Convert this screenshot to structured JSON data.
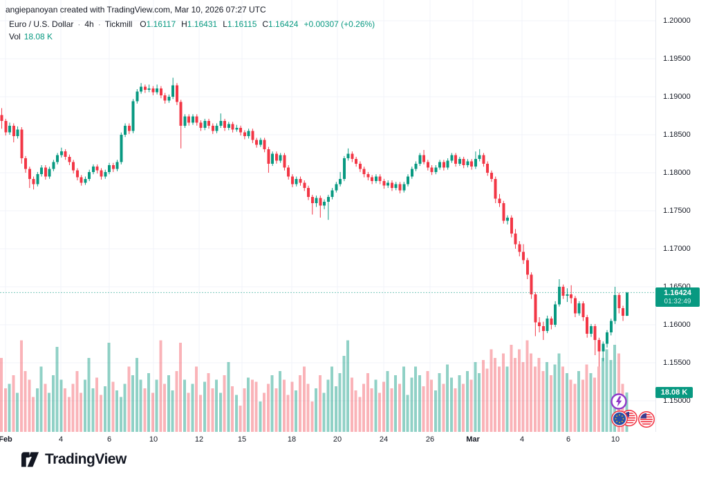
{
  "attribution": "angiepanoyan created with TradingView.com, Mar 10, 2026 07:27 UTC",
  "legend": {
    "symbol": "Euro / U.S. Dollar",
    "sep": "·",
    "interval": "4h",
    "broker": "Tickmill",
    "ohlc": [
      {
        "label": "O",
        "value": "1.16117"
      },
      {
        "label": "H",
        "value": "1.16431"
      },
      {
        "label": "L",
        "value": "1.16115"
      },
      {
        "label": "C",
        "value": "1.16424"
      }
    ],
    "change": "+0.00307 (+0.26%)",
    "vol_label": "Vol",
    "vol_value": "18.08 K"
  },
  "price_badge": {
    "price": "1.16424",
    "countdown": "01:32:49"
  },
  "volume_badge": {
    "value": "18.08 K"
  },
  "logo": {
    "text": "TradingView"
  },
  "event_markers": [
    "flash-event-icon",
    "us-flag-event-icon",
    "eu-flag-event-icon",
    "us-flag-event-icon-2"
  ],
  "colors": {
    "up": "#089981",
    "down": "#f23645",
    "vol_up": "rgba(8,153,129,0.45)",
    "vol_down": "rgba(242,54,69,0.38)",
    "grid": "#f0f3fa",
    "axis_text": "#131722",
    "badge_bg": "#089981",
    "last_price_line": "rgba(8,153,129,0.55)",
    "flash_purple": "#9038c8",
    "flag_ring_red": "#f23645",
    "eu_blue": "#2950a8",
    "us_blue": "#3c3b8e"
  },
  "chart_data": {
    "type": "candlestick+volume",
    "title": "Euro / U.S. Dollar · 4h · Tickmill",
    "symbol": "EURUSD",
    "interval": "4h",
    "timezone_note": "Mar 10, 2026 07:27 UTC",
    "ylim": [
      1.15,
      1.2
    ],
    "price_base": 1.0,
    "price_scale": 0.0001,
    "last_price": 1.16424,
    "last_volume_k": 18.08,
    "grid": true,
    "y_ticks": [
      "1.20000",
      "1.19500",
      "1.19000",
      "1.18500",
      "1.18000",
      "1.17500",
      "1.17000",
      "1.16500",
      "1.16000",
      "1.15500",
      "1.15000"
    ],
    "x_ticks": [
      {
        "label": "Feb",
        "x": 8,
        "major": true
      },
      {
        "label": "4",
        "x": 88,
        "major": false
      },
      {
        "label": "6",
        "x": 158,
        "major": false
      },
      {
        "label": "10",
        "x": 222,
        "major": false
      },
      {
        "label": "12",
        "x": 288,
        "major": false
      },
      {
        "label": "15",
        "x": 350,
        "major": false
      },
      {
        "label": "18",
        "x": 422,
        "major": false
      },
      {
        "label": "20",
        "x": 488,
        "major": false
      },
      {
        "label": "24",
        "x": 555,
        "major": false
      },
      {
        "label": "26",
        "x": 622,
        "major": false
      },
      {
        "label": "Mar",
        "x": 684,
        "major": true
      },
      {
        "label": "4",
        "x": 755,
        "major": false
      },
      {
        "label": "6",
        "x": 822,
        "major": false
      },
      {
        "label": "10",
        "x": 890,
        "major": false
      }
    ],
    "candles_ohlc_pips": [
      [
        1876,
        1885,
        1858,
        1868
      ],
      [
        1868,
        1871,
        1849,
        1853
      ],
      [
        1853,
        1866,
        1850,
        1862
      ],
      [
        1862,
        1865,
        1840,
        1848
      ],
      [
        1848,
        1861,
        1845,
        1857
      ],
      [
        1857,
        1860,
        1812,
        1819
      ],
      [
        1819,
        1822,
        1800,
        1805
      ],
      [
        1805,
        1808,
        1780,
        1792
      ],
      [
        1792,
        1795,
        1778,
        1785
      ],
      [
        1785,
        1801,
        1782,
        1798
      ],
      [
        1798,
        1810,
        1795,
        1807
      ],
      [
        1807,
        1810,
        1791,
        1795
      ],
      [
        1795,
        1808,
        1792,
        1805
      ],
      [
        1805,
        1817,
        1802,
        1814
      ],
      [
        1814,
        1826,
        1811,
        1823
      ],
      [
        1823,
        1833,
        1820,
        1828
      ],
      [
        1828,
        1831,
        1817,
        1821
      ],
      [
        1821,
        1824,
        1810,
        1814
      ],
      [
        1814,
        1817,
        1799,
        1803
      ],
      [
        1803,
        1806,
        1790,
        1794
      ],
      [
        1794,
        1797,
        1783,
        1787
      ],
      [
        1787,
        1795,
        1784,
        1792
      ],
      [
        1792,
        1804,
        1789,
        1801
      ],
      [
        1801,
        1811,
        1798,
        1808
      ],
      [
        1808,
        1811,
        1799,
        1803
      ],
      [
        1803,
        1806,
        1791,
        1795
      ],
      [
        1795,
        1804,
        1792,
        1801
      ],
      [
        1801,
        1813,
        1798,
        1810
      ],
      [
        1810,
        1813,
        1801,
        1805
      ],
      [
        1805,
        1817,
        1802,
        1814
      ],
      [
        1814,
        1853,
        1811,
        1850
      ],
      [
        1850,
        1865,
        1847,
        1862
      ],
      [
        1862,
        1865,
        1851,
        1855
      ],
      [
        1855,
        1897,
        1852,
        1894
      ],
      [
        1894,
        1910,
        1891,
        1907
      ],
      [
        1907,
        1918,
        1904,
        1913
      ],
      [
        1913,
        1916,
        1905,
        1909
      ],
      [
        1909,
        1916,
        1906,
        1911
      ],
      [
        1911,
        1914,
        1902,
        1906
      ],
      [
        1906,
        1916,
        1903,
        1911
      ],
      [
        1911,
        1914,
        1898,
        1902
      ],
      [
        1902,
        1905,
        1891,
        1895
      ],
      [
        1895,
        1903,
        1892,
        1900
      ],
      [
        1900,
        1925,
        1897,
        1915
      ],
      [
        1915,
        1918,
        1889,
        1893
      ],
      [
        1893,
        1896,
        1832,
        1862
      ],
      [
        1862,
        1877,
        1859,
        1874
      ],
      [
        1874,
        1877,
        1862,
        1866
      ],
      [
        1866,
        1877,
        1863,
        1874
      ],
      [
        1874,
        1877,
        1862,
        1866
      ],
      [
        1866,
        1869,
        1855,
        1859
      ],
      [
        1859,
        1871,
        1856,
        1868
      ],
      [
        1868,
        1871,
        1858,
        1862
      ],
      [
        1862,
        1865,
        1851,
        1855
      ],
      [
        1855,
        1865,
        1852,
        1862
      ],
      [
        1862,
        1878,
        1859,
        1868
      ],
      [
        1868,
        1871,
        1855,
        1859
      ],
      [
        1859,
        1867,
        1856,
        1864
      ],
      [
        1864,
        1867,
        1853,
        1857
      ],
      [
        1857,
        1863,
        1854,
        1859
      ],
      [
        1859,
        1862,
        1849,
        1853
      ],
      [
        1853,
        1856,
        1844,
        1848
      ],
      [
        1848,
        1858,
        1845,
        1855
      ],
      [
        1855,
        1858,
        1839,
        1843
      ],
      [
        1843,
        1846,
        1833,
        1837
      ],
      [
        1837,
        1846,
        1834,
        1843
      ],
      [
        1843,
        1846,
        1827,
        1831
      ],
      [
        1831,
        1834,
        1800,
        1812
      ],
      [
        1812,
        1828,
        1809,
        1825
      ],
      [
        1825,
        1828,
        1812,
        1816
      ],
      [
        1816,
        1826,
        1813,
        1823
      ],
      [
        1823,
        1826,
        1803,
        1807
      ],
      [
        1807,
        1810,
        1791,
        1795
      ],
      [
        1795,
        1798,
        1781,
        1785
      ],
      [
        1785,
        1795,
        1782,
        1792
      ],
      [
        1792,
        1795,
        1783,
        1787
      ],
      [
        1787,
        1790,
        1776,
        1780
      ],
      [
        1780,
        1783,
        1764,
        1768
      ],
      [
        1768,
        1771,
        1745,
        1760
      ],
      [
        1760,
        1770,
        1755,
        1767
      ],
      [
        1767,
        1770,
        1741,
        1757
      ],
      [
        1757,
        1765,
        1752,
        1762
      ],
      [
        1762,
        1771,
        1738,
        1768
      ],
      [
        1768,
        1780,
        1765,
        1777
      ],
      [
        1777,
        1788,
        1774,
        1785
      ],
      [
        1785,
        1801,
        1782,
        1792
      ],
      [
        1792,
        1822,
        1789,
        1819
      ],
      [
        1819,
        1832,
        1816,
        1825
      ],
      [
        1825,
        1828,
        1814,
        1818
      ],
      [
        1818,
        1821,
        1808,
        1812
      ],
      [
        1812,
        1815,
        1801,
        1805
      ],
      [
        1805,
        1808,
        1794,
        1798
      ],
      [
        1798,
        1801,
        1790,
        1794
      ],
      [
        1794,
        1797,
        1785,
        1789
      ],
      [
        1789,
        1798,
        1786,
        1795
      ],
      [
        1795,
        1798,
        1785,
        1789
      ],
      [
        1789,
        1792,
        1779,
        1783
      ],
      [
        1783,
        1790,
        1780,
        1787
      ],
      [
        1787,
        1790,
        1776,
        1780
      ],
      [
        1780,
        1788,
        1777,
        1785
      ],
      [
        1785,
        1788,
        1773,
        1777
      ],
      [
        1777,
        1788,
        1774,
        1785
      ],
      [
        1785,
        1798,
        1782,
        1795
      ],
      [
        1795,
        1808,
        1792,
        1805
      ],
      [
        1805,
        1815,
        1802,
        1812
      ],
      [
        1812,
        1826,
        1809,
        1823
      ],
      [
        1823,
        1830,
        1811,
        1814
      ],
      [
        1814,
        1817,
        1803,
        1807
      ],
      [
        1807,
        1810,
        1797,
        1801
      ],
      [
        1801,
        1810,
        1798,
        1807
      ],
      [
        1807,
        1817,
        1804,
        1814
      ],
      [
        1814,
        1817,
        1803,
        1807
      ],
      [
        1807,
        1819,
        1804,
        1816
      ],
      [
        1816,
        1826,
        1813,
        1823
      ],
      [
        1823,
        1826,
        1808,
        1812
      ],
      [
        1812,
        1821,
        1809,
        1818
      ],
      [
        1818,
        1821,
        1806,
        1810
      ],
      [
        1810,
        1818,
        1807,
        1815
      ],
      [
        1815,
        1818,
        1804,
        1808
      ],
      [
        1808,
        1828,
        1805,
        1818
      ],
      [
        1818,
        1831,
        1815,
        1823
      ],
      [
        1823,
        1826,
        1808,
        1812
      ],
      [
        1812,
        1815,
        1796,
        1800
      ],
      [
        1800,
        1803,
        1788,
        1792
      ],
      [
        1792,
        1795,
        1760,
        1766
      ],
      [
        1766,
        1772,
        1755,
        1760
      ],
      [
        1760,
        1763,
        1733,
        1737
      ],
      [
        1737,
        1744,
        1732,
        1741
      ],
      [
        1741,
        1744,
        1715,
        1720
      ],
      [
        1720,
        1726,
        1700,
        1706
      ],
      [
        1706,
        1710,
        1690,
        1696
      ],
      [
        1696,
        1706,
        1680,
        1685
      ],
      [
        1685,
        1688,
        1660,
        1666
      ],
      [
        1666,
        1669,
        1634,
        1640
      ],
      [
        1640,
        1643,
        1585,
        1603
      ],
      [
        1603,
        1610,
        1590,
        1598
      ],
      [
        1598,
        1604,
        1580,
        1592
      ],
      [
        1592,
        1612,
        1589,
        1608
      ],
      [
        1608,
        1611,
        1594,
        1600
      ],
      [
        1600,
        1631,
        1597,
        1627
      ],
      [
        1627,
        1660,
        1624,
        1650
      ],
      [
        1650,
        1653,
        1634,
        1638
      ],
      [
        1638,
        1648,
        1630,
        1640
      ],
      [
        1640,
        1652,
        1628,
        1635
      ],
      [
        1635,
        1638,
        1610,
        1615
      ],
      [
        1615,
        1631,
        1612,
        1628
      ],
      [
        1628,
        1631,
        1605,
        1610
      ],
      [
        1610,
        1613,
        1583,
        1588
      ],
      [
        1588,
        1601,
        1584,
        1598
      ],
      [
        1598,
        1601,
        1560,
        1580
      ],
      [
        1580,
        1583,
        1545,
        1565
      ],
      [
        1565,
        1578,
        1552,
        1575
      ],
      [
        1575,
        1593,
        1570,
        1590
      ],
      [
        1590,
        1608,
        1586,
        1605
      ],
      [
        1605,
        1650,
        1601,
        1639
      ],
      [
        1639,
        1642,
        1615,
        1622
      ],
      [
        1622,
        1625,
        1605,
        1612
      ],
      [
        1611.7,
        1643.1,
        1611.5,
        1642.4
      ]
    ],
    "volumes_k": [
      34,
      20,
      22,
      26,
      18,
      42,
      28,
      24,
      16,
      20,
      30,
      22,
      18,
      26,
      39,
      24,
      20,
      16,
      22,
      28,
      18,
      24,
      34,
      20,
      25,
      17,
      21,
      41,
      23,
      19,
      16,
      22,
      30,
      26,
      34,
      24,
      20,
      27,
      18,
      24,
      42,
      22,
      26,
      19,
      28,
      41,
      24,
      18,
      22,
      30,
      17,
      23,
      27,
      20,
      24,
      18,
      26,
      32,
      21,
      17,
      12,
      20,
      25,
      24,
      23,
      14,
      18,
      22,
      26,
      20,
      28,
      24,
      17,
      23,
      19,
      26,
      30,
      22,
      14,
      20,
      26,
      18,
      24,
      30,
      21,
      27,
      35,
      42,
      25,
      19,
      16,
      22,
      27,
      20,
      24,
      18,
      23,
      28,
      20,
      26,
      22,
      30,
      17,
      25,
      30,
      26,
      21,
      28,
      24,
      19,
      27,
      22,
      31,
      25,
      20,
      26,
      22,
      28,
      24,
      32,
      27,
      33,
      29,
      38,
      34,
      30,
      36,
      30,
      40,
      34,
      38,
      32,
      42,
      36,
      30,
      34,
      28,
      32,
      26,
      31,
      36,
      30,
      27,
      24,
      22,
      28,
      24,
      31,
      27,
      25,
      30,
      34,
      38,
      33,
      40,
      36,
      22,
      18.08
    ]
  }
}
